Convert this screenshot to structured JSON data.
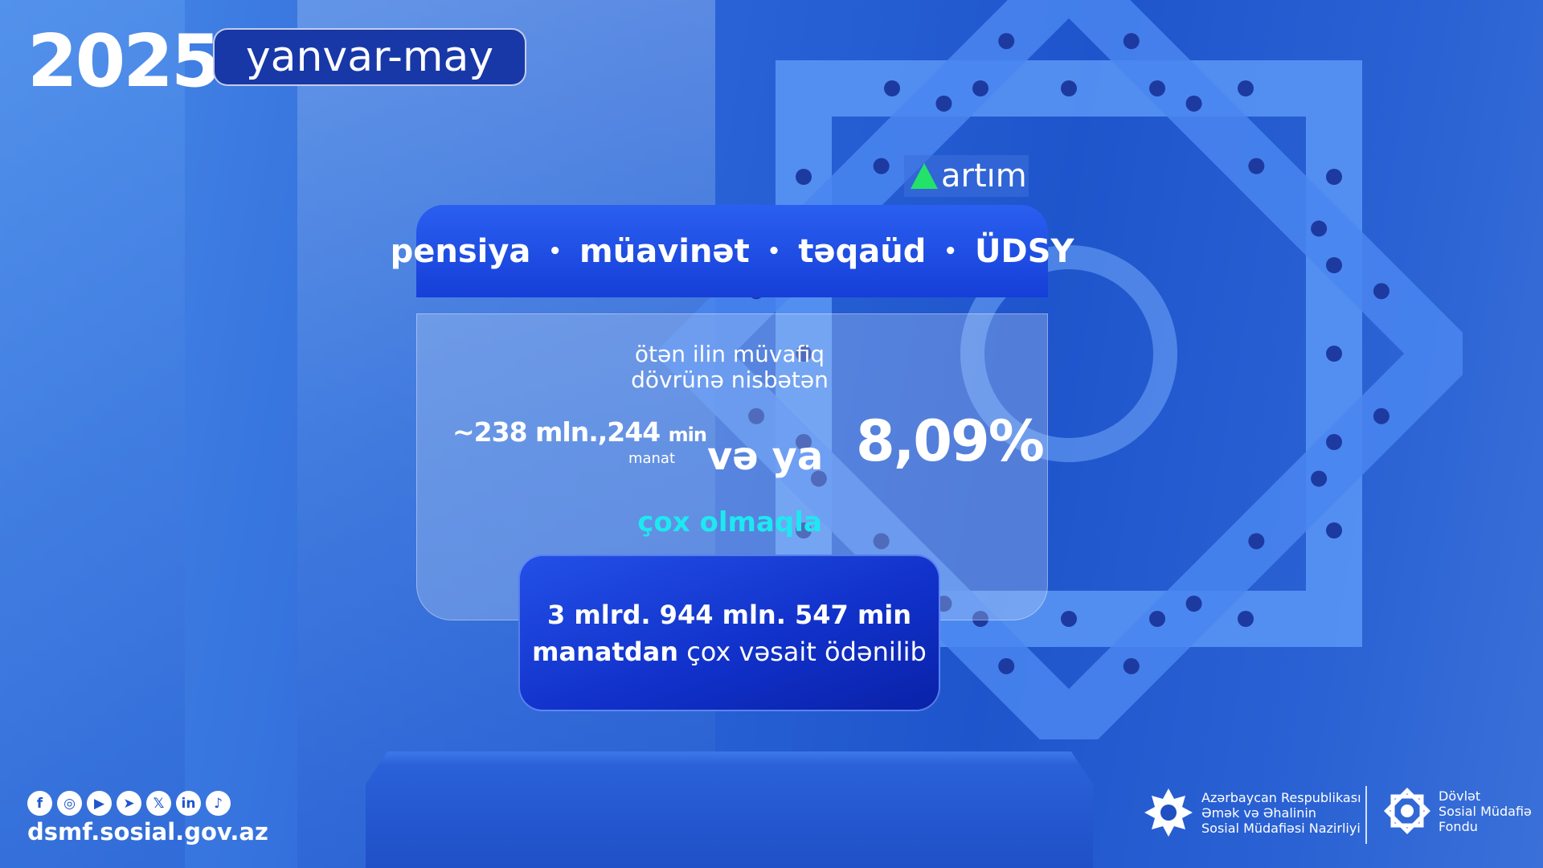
{
  "header": {
    "year": "2025",
    "period": "yanvar-may"
  },
  "badge": {
    "label": "artım",
    "icon": "up-triangle-icon",
    "color": "#22e26a"
  },
  "categories": [
    "pensiya",
    "müavinət",
    "təqaüd",
    "ÜDSY"
  ],
  "separator": "•",
  "comparison": {
    "line1": "ötən ilin müvafiq",
    "line2": "dövrünə nisbətən"
  },
  "increase": {
    "amount_main": "~238 mln.,244",
    "amount_unit": "min",
    "currency": "manat",
    "connector": "və ya",
    "percent": "8,09%",
    "note": "çox olmaqla",
    "note_color": "#1ee8f0"
  },
  "total": {
    "line1": "3 mlrd. 944 mln. 547 min",
    "line2_bold": "manatdan",
    "line2_rest": " çox vəsait ödənilib"
  },
  "footer": {
    "socials": [
      {
        "icon": "facebook-icon",
        "glyph": "f"
      },
      {
        "icon": "instagram-icon",
        "glyph": "◎"
      },
      {
        "icon": "youtube-icon",
        "glyph": "▶"
      },
      {
        "icon": "telegram-icon",
        "glyph": "➤"
      },
      {
        "icon": "x-icon",
        "glyph": "𝕏"
      },
      {
        "icon": "linkedin-icon",
        "glyph": "in"
      },
      {
        "icon": "tiktok-icon",
        "glyph": "♪"
      }
    ],
    "url": "dsmf.sosial.gov.az",
    "ministry": [
      "Azərbaycan Respublikası",
      "Əmək və Əhalinin",
      "Sosial Müdafiəsi Nazirliyi"
    ],
    "fund": [
      "Dövlət",
      "Sosial Müdafiə",
      "Fondu"
    ]
  }
}
